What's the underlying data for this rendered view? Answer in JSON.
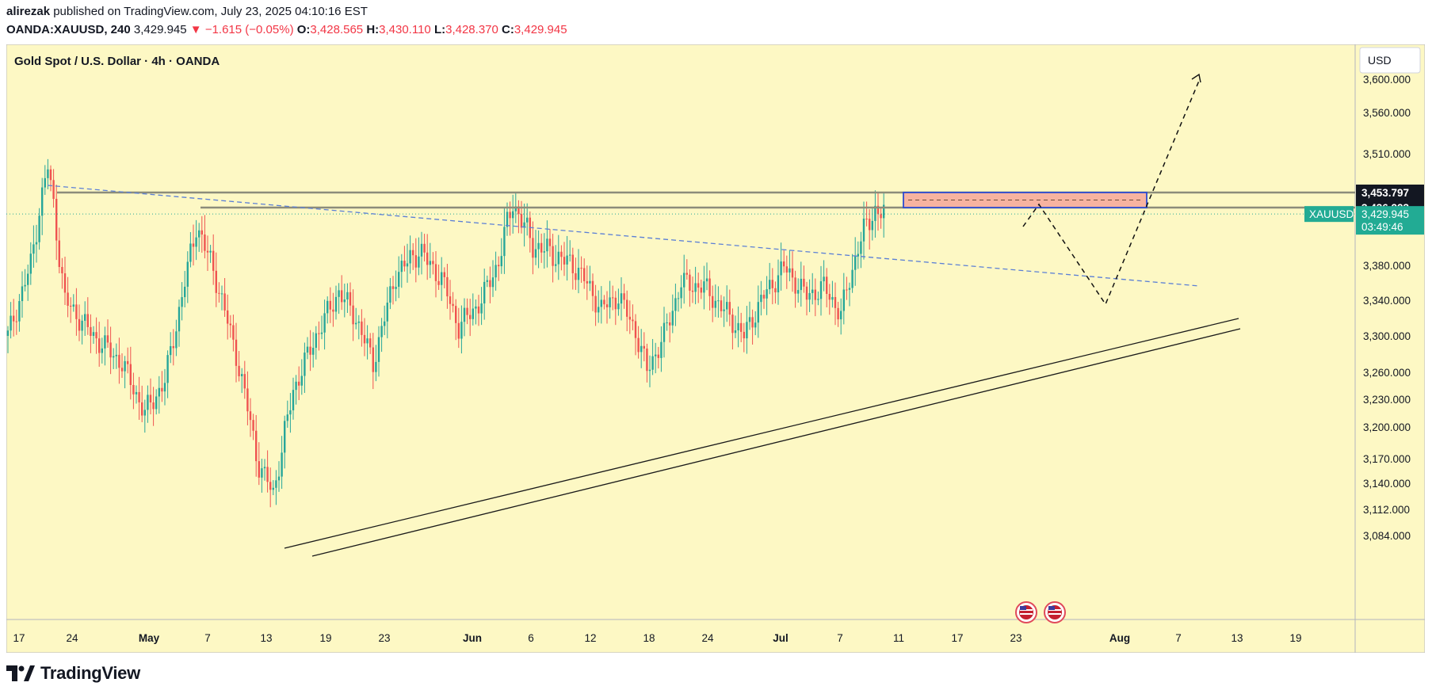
{
  "header": {
    "author": "alirezak",
    "published_text": "published on TradingView.com, July 23, 2025 04:10:16 EST",
    "symbol": "OANDA:XAUUSD, 240",
    "last": "3,429.945",
    "change_arrow": "▼",
    "change": "−1.615 (−0.05%)",
    "o_label": "O:",
    "open": "3,428.565",
    "h_label": "H:",
    "high": "3,430.110",
    "l_label": "L:",
    "low": "3,428.370",
    "c_label": "C:",
    "close": "3,429.945"
  },
  "chart_title": "Gold Spot / U.S. Dollar · 4h · OANDA",
  "currency_button": "USD",
  "footer": {
    "brand": "TradingView"
  },
  "colors": {
    "background": "#fdf8c4",
    "up": "#26a69a",
    "down": "#ef5350",
    "trend_dashed": "#5b7fd6",
    "zone_fill": "#f7b3a0",
    "zone_border": "#2c4bd1",
    "resistance": "#8c8c7a",
    "support": "#1a1a1a",
    "price_tag": "#22ab94"
  },
  "chart_data": {
    "type": "candlestick",
    "x_tick_labels": [
      "17",
      "24",
      "May",
      "7",
      "13",
      "19",
      "23",
      "Jun",
      "6",
      "12",
      "18",
      "24",
      "Jul",
      "7",
      "11",
      "17",
      "23",
      "Aug",
      "7",
      "13",
      "19"
    ],
    "y_tick_labels": [
      "3,600.000",
      "3,560.000",
      "3,510.000",
      "3,380.000",
      "3,340.000",
      "3,300.000",
      "3,260.000",
      "3,230.000",
      "3,200.000",
      "3,170.000",
      "3,140.000",
      "3,112.000",
      "3,084.000"
    ],
    "price_labels": [
      {
        "text": "3,453.797",
        "value": 3453.797
      },
      {
        "text": "3,436.223",
        "value": 3436.223
      }
    ],
    "current": {
      "symbol": "XAUUSD",
      "price": "3,429.945",
      "countdown": "03:49:46",
      "value": 3429.945
    },
    "resistance_levels": [
      3453.8,
      3436.2
    ],
    "zone": {
      "low": 3436.2,
      "high": 3453.8
    },
    "price_path": [
      {
        "i": 0,
        "p": 3300
      },
      {
        "i": 8,
        "p": 3380
      },
      {
        "i": 14,
        "p": 3490
      },
      {
        "i": 20,
        "p": 3340
      },
      {
        "i": 30,
        "p": 3300
      },
      {
        "i": 40,
        "p": 3270
      },
      {
        "i": 48,
        "p": 3215
      },
      {
        "i": 55,
        "p": 3250
      },
      {
        "i": 62,
        "p": 3360
      },
      {
        "i": 66,
        "p": 3420
      },
      {
        "i": 72,
        "p": 3375
      },
      {
        "i": 80,
        "p": 3280
      },
      {
        "i": 88,
        "p": 3160
      },
      {
        "i": 93,
        "p": 3130
      },
      {
        "i": 100,
        "p": 3240
      },
      {
        "i": 108,
        "p": 3300
      },
      {
        "i": 116,
        "p": 3350
      },
      {
        "i": 122,
        "p": 3320
      },
      {
        "i": 128,
        "p": 3270
      },
      {
        "i": 136,
        "p": 3370
      },
      {
        "i": 144,
        "p": 3395
      },
      {
        "i": 152,
        "p": 3365
      },
      {
        "i": 158,
        "p": 3310
      },
      {
        "i": 166,
        "p": 3340
      },
      {
        "i": 172,
        "p": 3385
      },
      {
        "i": 177,
        "p": 3442
      },
      {
        "i": 184,
        "p": 3400
      },
      {
        "i": 192,
        "p": 3390
      },
      {
        "i": 200,
        "p": 3375
      },
      {
        "i": 208,
        "p": 3330
      },
      {
        "i": 214,
        "p": 3345
      },
      {
        "i": 220,
        "p": 3305
      },
      {
        "i": 224,
        "p": 3262
      },
      {
        "i": 230,
        "p": 3300
      },
      {
        "i": 236,
        "p": 3360
      },
      {
        "i": 244,
        "p": 3355
      },
      {
        "i": 252,
        "p": 3325
      },
      {
        "i": 258,
        "p": 3300
      },
      {
        "i": 264,
        "p": 3340
      },
      {
        "i": 272,
        "p": 3378
      },
      {
        "i": 280,
        "p": 3345
      },
      {
        "i": 286,
        "p": 3355
      },
      {
        "i": 292,
        "p": 3325
      },
      {
        "i": 298,
        "p": 3400
      },
      {
        "i": 304,
        "p": 3435
      },
      {
        "i": 307,
        "p": 3430
      }
    ],
    "projection": [
      {
        "i": 310,
        "p": 3453
      },
      {
        "i": 334,
        "p": 3340
      },
      {
        "i": 350,
        "p": 3600
      }
    ],
    "grid": false,
    "legend": "none"
  }
}
